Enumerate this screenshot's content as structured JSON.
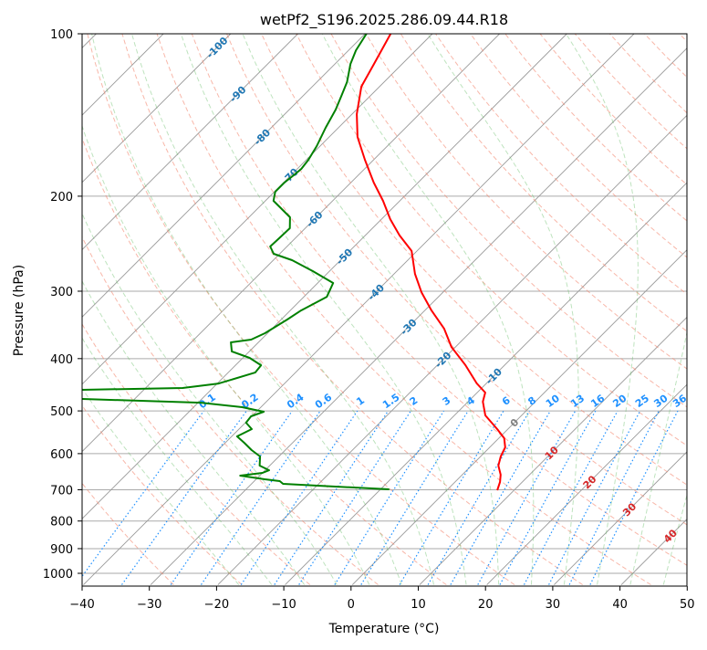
{
  "chart_data": {
    "type": "line",
    "subtype": "skew-t log-p",
    "title": "wetPf2_S196.2025.286.09.44.R18",
    "xlabel": "Temperature (°C)",
    "ylabel": "Pressure (hPa)",
    "xlim": [
      -40,
      50
    ],
    "ylim": [
      1050,
      100
    ],
    "x_ticks": [
      "−40",
      "−30",
      "−20",
      "−10",
      "0",
      "10",
      "20",
      "30",
      "40",
      "50"
    ],
    "x_tick_values": [
      -40,
      -30,
      -20,
      -10,
      0,
      10,
      20,
      30,
      40,
      50
    ],
    "y_ticks": [
      "100",
      "200",
      "300",
      "400",
      "500",
      "600",
      "700",
      "800",
      "900",
      "1000"
    ],
    "y_tick_values": [
      100,
      200,
      300,
      400,
      500,
      600,
      700,
      800,
      900,
      1000
    ],
    "grid": true,
    "isotherm_labels": [
      {
        "value": -100,
        "text": "-100",
        "color": "#1f77b4"
      },
      {
        "value": -90,
        "text": "-90",
        "color": "#1f77b4"
      },
      {
        "value": -80,
        "text": "-80",
        "color": "#1f77b4"
      },
      {
        "value": -70,
        "text": "-70",
        "color": "#1f77b4"
      },
      {
        "value": -60,
        "text": "-60",
        "color": "#1f77b4"
      },
      {
        "value": -50,
        "text": "-50",
        "color": "#1f77b4"
      },
      {
        "value": -40,
        "text": "-40",
        "color": "#1f77b4"
      },
      {
        "value": -30,
        "text": "-30",
        "color": "#1f77b4"
      },
      {
        "value": -20,
        "text": "-20",
        "color": "#1f77b4"
      },
      {
        "value": -10,
        "text": "-10",
        "color": "#1f77b4"
      },
      {
        "value": 0,
        "text": "0",
        "color": "#808080"
      },
      {
        "value": 10,
        "text": "10",
        "color": "#d62728"
      },
      {
        "value": 20,
        "text": "20",
        "color": "#d62728"
      },
      {
        "value": 30,
        "text": "30",
        "color": "#d62728"
      },
      {
        "value": 40,
        "text": "40",
        "color": "#d62728"
      }
    ],
    "mixing_ratio_labels": [
      "0.1",
      "0.2",
      "0.4",
      "0.6",
      "1",
      "1.5",
      "2",
      "3",
      "4",
      "6",
      "8",
      "10",
      "13",
      "16",
      "20",
      "25",
      "30",
      "36"
    ],
    "mixing_ratio_values": [
      0.1,
      0.2,
      0.4,
      0.6,
      1,
      1.5,
      2,
      3,
      4,
      6,
      8,
      10,
      13,
      16,
      20,
      25,
      30,
      36
    ],
    "dry_adiabats_c_at_1000": [
      -30,
      -20,
      -10,
      0,
      10,
      20,
      30,
      40,
      50,
      60,
      70,
      80,
      90,
      100,
      110,
      120,
      130,
      140,
      150,
      160,
      170,
      180,
      190
    ],
    "moist_adiabats_c_at_1000": [
      -20,
      -15,
      -10,
      -5,
      0,
      5,
      10,
      15,
      20,
      25,
      30,
      35,
      40,
      45,
      50
    ],
    "series": [
      {
        "name": "Temperature",
        "color": "#ff0000",
        "pressure": [
          100,
          113.7,
          125.3,
          140.9,
          155.3,
          171.2,
          188.7,
          204,
          220.6,
          236.5,
          252.7,
          278.6,
          301.3,
          325.7,
          352.1,
          380.6,
          411.5,
          444.8,
          462.4,
          480.8,
          509.6,
          540.4,
          561.8,
          584.1,
          607.3,
          631.5,
          656.6,
          677.4,
          701.5
        ],
        "temperature": [
          -76.2,
          -74.2,
          -72.7,
          -69.3,
          -65.8,
          -61.3,
          -56.6,
          -52.5,
          -48.7,
          -44.9,
          -40.8,
          -36.9,
          -33.2,
          -29,
          -24.4,
          -20.6,
          -15.8,
          -11.4,
          -8.8,
          -7.8,
          -5.4,
          -1.6,
          0.8,
          2.3,
          3.0,
          4.0,
          5.7,
          6.7,
          7.5
        ]
      },
      {
        "name": "Dewpoint",
        "color": "#008000",
        "pressure": [
          100,
          107.3,
          113.7,
          122.9,
          130.3,
          138.2,
          149.4,
          161.5,
          171.2,
          178,
          182.9,
          188.7,
          196.2,
          204,
          210.5,
          218.8,
          229.3,
          240.3,
          247.9,
          255.7,
          262.8,
          275.4,
          289.7,
          307.2,
          325.7,
          338.6,
          358.9,
          368.8,
          373.2,
          388,
          398.8,
          411.5,
          424.5,
          444.8,
          453.4,
          457,
          462,
          470,
          475.2,
          482.7,
          492,
          501.7,
          511.7,
          525.8,
          540.4,
          557.4,
          572.8,
          591,
          607.3,
          631.5,
          644.2,
          651.5,
          659.2,
          669.5,
          674.7,
          682.6,
          698.8
        ],
        "temperature": [
          -79.8,
          -78.9,
          -77.7,
          -75.5,
          -74.3,
          -73.1,
          -71.9,
          -70.5,
          -69.7,
          -69.4,
          -69.6,
          -69.9,
          -69.9,
          -68.8,
          -66.6,
          -63.9,
          -62.3,
          -62.4,
          -62.5,
          -60.9,
          -57.2,
          -52.5,
          -47.7,
          -46.6,
          -48.4,
          -49.1,
          -50.4,
          -51.5,
          -54.1,
          -52.6,
          -49,
          -46.2,
          -46,
          -49.8,
          -54.5,
          -69.2,
          -110,
          -110,
          -67.8,
          -49.6,
          -42.8,
          -38.9,
          -40.1,
          -39.9,
          -38.1,
          -39.2,
          -37.2,
          -35,
          -32.8,
          -31.5,
          -29.4,
          -30,
          -32.9,
          -28.7,
          -26.2,
          -25.3,
          -8.7
        ]
      }
    ]
  }
}
